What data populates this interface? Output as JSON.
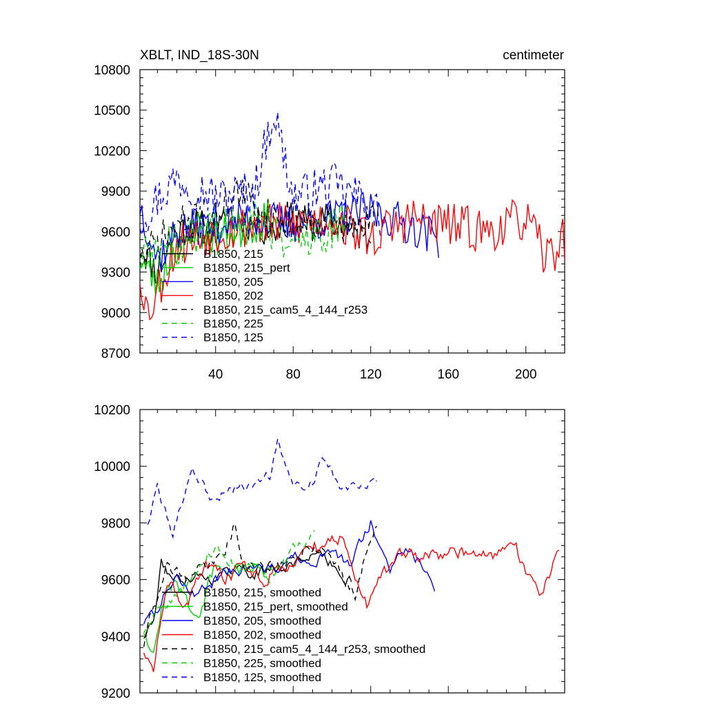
{
  "chart_data": [
    {
      "type": "line",
      "title": "XBLT, IND_18S-30N",
      "units": "centimeter",
      "xlim": [
        1,
        220
      ],
      "ylim": [
        8700,
        10800
      ],
      "yticks": [
        8700,
        9000,
        9300,
        9600,
        9900,
        10200,
        10500,
        10800
      ],
      "xticks": [
        40,
        80,
        120,
        160,
        200
      ],
      "legend": [
        "B1850, 215",
        "B1850, 215_pert",
        "B1850, 205",
        "B1850, 202",
        "B1850, 215_cam5_4_144_r253",
        "B1850, 225",
        "B1850, 125"
      ],
      "series": [
        {
          "name": "B1850, 215",
          "color": "#000000",
          "dash": "solid",
          "x_end": 120,
          "level": 9650,
          "trend": [
            9450,
            9650,
            9680,
            9620
          ],
          "amp": 130,
          "seed": 11,
          "points": [
            [
              1,
              9500
            ],
            [
              10,
              9300
            ],
            [
              20,
              9600
            ],
            [
              30,
              9650
            ],
            [
              40,
              9600
            ],
            [
              50,
              9700
            ],
            [
              60,
              9650
            ],
            [
              70,
              9600
            ],
            [
              80,
              9700
            ],
            [
              90,
              9650
            ],
            [
              100,
              9700
            ],
            [
              110,
              9600
            ],
            [
              120,
              9550
            ]
          ]
        },
        {
          "name": "B1850, 215_pert",
          "color": "#00d000",
          "dash": "solid",
          "x_end": 68,
          "level": 9600,
          "trend": [
            9400,
            9600,
            9650
          ],
          "amp": 150,
          "seed": 23,
          "points": [
            [
              1,
              9400
            ],
            [
              10,
              9200
            ],
            [
              20,
              9500
            ],
            [
              30,
              9650
            ],
            [
              40,
              9550
            ],
            [
              50,
              9600
            ],
            [
              60,
              9650
            ],
            [
              68,
              9700
            ]
          ]
        },
        {
          "name": "B1850, 205",
          "color": "#0000ff",
          "dash": "solid",
          "x_end": 155,
          "level": 9650,
          "trend": [
            9500,
            9650,
            9700,
            9650,
            9600
          ],
          "amp": 150,
          "seed": 37,
          "points": [
            [
              1,
              9800
            ],
            [
              10,
              9400
            ],
            [
              20,
              9600
            ],
            [
              40,
              9650
            ],
            [
              60,
              9700
            ],
            [
              80,
              9650
            ],
            [
              100,
              9700
            ],
            [
              120,
              9750
            ],
            [
              140,
              9650
            ],
            [
              155,
              9550
            ]
          ]
        },
        {
          "name": "B1850, 202",
          "color": "#ff0000",
          "dash": "solid",
          "x_end": 220,
          "level": 9650,
          "trend": [
            9350,
            9600,
            9650,
            9650,
            9650,
            9600,
            9650
          ],
          "amp": 170,
          "seed": 53,
          "points": [
            [
              1,
              9300
            ],
            [
              5,
              9000
            ],
            [
              20,
              9500
            ],
            [
              40,
              9600
            ],
            [
              60,
              9650
            ],
            [
              80,
              9650
            ],
            [
              100,
              9700
            ],
            [
              120,
              9550
            ],
            [
              140,
              9700
            ],
            [
              160,
              9650
            ],
            [
              180,
              9600
            ],
            [
              200,
              9700
            ],
            [
              210,
              9400
            ],
            [
              220,
              9550
            ]
          ]
        },
        {
          "name": "B1850, 215_cam5_4_144_r253",
          "color": "#000000",
          "dash": "8,6",
          "x_end": 122,
          "level": 9680,
          "trend": [
            9450,
            9700,
            9750,
            9650,
            9650
          ],
          "amp": 140,
          "seed": 71,
          "points": [
            [
              1,
              9400
            ],
            [
              20,
              9650
            ],
            [
              40,
              9700
            ],
            [
              50,
              9900
            ],
            [
              70,
              9700
            ],
            [
              90,
              9700
            ],
            [
              110,
              9600
            ],
            [
              122,
              9700
            ]
          ]
        },
        {
          "name": "B1850, 225",
          "color": "#00d000",
          "dash": "8,6",
          "x_end": 108,
          "level": 9620,
          "trend": [
            9400,
            9600,
            9650,
            9600
          ],
          "amp": 160,
          "seed": 89,
          "points": [
            [
              1,
              9400
            ],
            [
              20,
              9500
            ],
            [
              40,
              9650
            ],
            [
              60,
              9700
            ],
            [
              80,
              9500
            ],
            [
              100,
              9600
            ],
            [
              108,
              9700
            ]
          ]
        },
        {
          "name": "B1850, 125",
          "color": "#0000ff",
          "dash": "8,6",
          "x_end": 125,
          "level": 9900,
          "trend": [
            9750,
            9950,
            9900,
            9950,
            9900
          ],
          "amp": 170,
          "seed": 97,
          "points": [
            [
              1,
              9700
            ],
            [
              20,
              10000
            ],
            [
              40,
              9850
            ],
            [
              60,
              9900
            ],
            [
              70,
              10500
            ],
            [
              80,
              9850
            ],
            [
              100,
              9950
            ],
            [
              120,
              9800
            ],
            [
              125,
              9700
            ]
          ]
        }
      ]
    },
    {
      "type": "line",
      "title": "",
      "xlim": [
        1,
        220
      ],
      "ylim": [
        9200,
        10200
      ],
      "yticks": [
        9200,
        9400,
        9600,
        9800,
        10000,
        10200
      ],
      "xticks": [
        40,
        80,
        120,
        160,
        200
      ],
      "legend": [
        "B1850, 215, smoothed",
        "B1850, 215_pert, smoothed",
        "B1850, 205, smoothed",
        "B1850, 202, smoothed",
        "B1850, 215_cam5_4_144_r253, smoothed",
        "B1850, 225, smoothed",
        "B1850, 125, smoothed"
      ],
      "series": [
        {
          "name": "B1850, 215, smoothed",
          "color": "#000000",
          "dash": "solid",
          "x_start": 3,
          "x_end": 110,
          "amp": 40,
          "seed": 111,
          "points": [
            [
              3,
              9400
            ],
            [
              8,
              9450
            ],
            [
              12,
              9650
            ],
            [
              20,
              9600
            ],
            [
              30,
              9620
            ],
            [
              40,
              9600
            ],
            [
              50,
              9650
            ],
            [
              60,
              9620
            ],
            [
              70,
              9640
            ],
            [
              80,
              9650
            ],
            [
              90,
              9700
            ],
            [
              100,
              9650
            ],
            [
              110,
              9600
            ]
          ]
        },
        {
          "name": "B1850, 215_pert, smoothed",
          "color": "#00d000",
          "dash": "solid",
          "x_start": 3,
          "x_end": 68,
          "amp": 45,
          "seed": 123,
          "points": [
            [
              3,
              9420
            ],
            [
              8,
              9350
            ],
            [
              12,
              9500
            ],
            [
              20,
              9600
            ],
            [
              30,
              9450
            ],
            [
              40,
              9650
            ],
            [
              50,
              9620
            ],
            [
              60,
              9650
            ],
            [
              68,
              9600
            ]
          ]
        },
        {
          "name": "B1850, 205, smoothed",
          "color": "#0000ff",
          "dash": "solid",
          "x_start": 3,
          "x_end": 153,
          "amp": 40,
          "seed": 137,
          "points": [
            [
              3,
              9450
            ],
            [
              10,
              9500
            ],
            [
              20,
              9620
            ],
            [
              30,
              9550
            ],
            [
              40,
              9600
            ],
            [
              50,
              9650
            ],
            [
              60,
              9620
            ],
            [
              70,
              9640
            ],
            [
              80,
              9680
            ],
            [
              90,
              9650
            ],
            [
              100,
              9700
            ],
            [
              110,
              9650
            ],
            [
              120,
              9800
            ],
            [
              130,
              9650
            ],
            [
              140,
              9700
            ],
            [
              148,
              9650
            ],
            [
              153,
              9580
            ]
          ]
        },
        {
          "name": "B1850, 202, smoothed",
          "color": "#ff0000",
          "dash": "solid",
          "x_start": 3,
          "x_end": 217,
          "amp": 45,
          "seed": 153,
          "points": [
            [
              3,
              9350
            ],
            [
              8,
              9300
            ],
            [
              15,
              9600
            ],
            [
              25,
              9500
            ],
            [
              35,
              9650
            ],
            [
              45,
              9600
            ],
            [
              55,
              9650
            ],
            [
              65,
              9600
            ],
            [
              75,
              9650
            ],
            [
              85,
              9700
            ],
            [
              95,
              9720
            ],
            [
              105,
              9750
            ],
            [
              112,
              9620
            ],
            [
              118,
              9520
            ],
            [
              125,
              9600
            ],
            [
              135,
              9700
            ],
            [
              150,
              9680
            ],
            [
              165,
              9700
            ],
            [
              180,
              9680
            ],
            [
              195,
              9700
            ],
            [
              203,
              9580
            ],
            [
              208,
              9550
            ],
            [
              217,
              9700
            ]
          ]
        },
        {
          "name": "B1850, 215_cam5_4_144_r253, smoothed",
          "color": "#000000",
          "dash": "8,6",
          "x_start": 3,
          "x_end": 123,
          "amp": 40,
          "seed": 171,
          "points": [
            [
              3,
              9370
            ],
            [
              8,
              9500
            ],
            [
              15,
              9650
            ],
            [
              25,
              9600
            ],
            [
              35,
              9650
            ],
            [
              45,
              9700
            ],
            [
              50,
              9800
            ],
            [
              55,
              9650
            ],
            [
              65,
              9650
            ],
            [
              75,
              9650
            ],
            [
              85,
              9700
            ],
            [
              95,
              9700
            ],
            [
              105,
              9620
            ],
            [
              112,
              9550
            ],
            [
              118,
              9700
            ],
            [
              123,
              9780
            ]
          ]
        },
        {
          "name": "B1850, 225, smoothed",
          "color": "#00d000",
          "dash": "8,6",
          "x_start": 3,
          "x_end": 91,
          "amp": 40,
          "seed": 189,
          "points": [
            [
              3,
              9420
            ],
            [
              10,
              9480
            ],
            [
              20,
              9550
            ],
            [
              30,
              9620
            ],
            [
              40,
              9720
            ],
            [
              50,
              9650
            ],
            [
              60,
              9650
            ],
            [
              70,
              9620
            ],
            [
              80,
              9700
            ],
            [
              91,
              9750
            ]
          ]
        },
        {
          "name": "B1850, 125, smoothed",
          "color": "#0000ff",
          "dash": "8,6",
          "x_start": 5,
          "x_end": 123,
          "amp": 35,
          "seed": 197,
          "points": [
            [
              5,
              9800
            ],
            [
              10,
              9920
            ],
            [
              18,
              9760
            ],
            [
              28,
              10000
            ],
            [
              38,
              9880
            ],
            [
              48,
              9920
            ],
            [
              58,
              9930
            ],
            [
              68,
              9970
            ],
            [
              72,
              10080
            ],
            [
              80,
              9930
            ],
            [
              90,
              9950
            ],
            [
              95,
              10030
            ],
            [
              105,
              9920
            ],
            [
              115,
              9950
            ],
            [
              123,
              9950
            ]
          ]
        }
      ]
    }
  ]
}
